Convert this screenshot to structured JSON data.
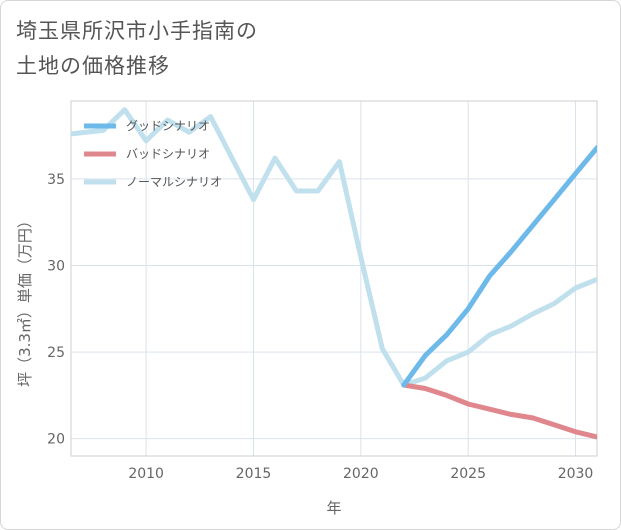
{
  "title_lines": [
    "埼玉県所沢市小手指南の",
    "土地の価格推移"
  ],
  "chart_data": {
    "type": "line",
    "xlabel": "年",
    "ylabel": "坪（3.3㎡）単価（万円）",
    "xlim": [
      2006.5,
      2031
    ],
    "ylim": [
      19,
      39.5
    ],
    "xticks": [
      2010,
      2015,
      2020,
      2025,
      2030
    ],
    "yticks": [
      20,
      25,
      30,
      35
    ],
    "grid": true,
    "legend_position": "top-left",
    "series": [
      {
        "name": "グッドシナリオ",
        "color": "#6cb9ea",
        "x": [
          2022,
          2023,
          2024,
          2025,
          2026,
          2027,
          2028,
          2029,
          2030,
          2031
        ],
        "y": [
          23.1,
          24.8,
          26.0,
          27.5,
          29.4,
          30.8,
          32.3,
          33.8,
          35.3,
          36.8
        ]
      },
      {
        "name": "バッドシナリオ",
        "color": "#e0878e",
        "x": [
          2022,
          2023,
          2024,
          2025,
          2026,
          2027,
          2028,
          2029,
          2030,
          2031
        ],
        "y": [
          23.1,
          22.9,
          22.5,
          22.0,
          21.7,
          21.4,
          21.2,
          20.8,
          20.4,
          20.1
        ]
      },
      {
        "name": "ノーマルシナリオ",
        "color": "#c0e0ee",
        "x": [
          2006.5,
          2008,
          2009,
          2010,
          2011,
          2012,
          2013,
          2014,
          2015,
          2016,
          2017,
          2018,
          2019,
          2020,
          2021,
          2022,
          2023,
          2024,
          2025,
          2026,
          2027,
          2028,
          2029,
          2030,
          2031
        ],
        "y": [
          37.6,
          37.8,
          39.0,
          37.2,
          38.4,
          37.7,
          38.6,
          36.2,
          33.8,
          36.2,
          34.3,
          34.3,
          36.0,
          30.5,
          25.2,
          23.1,
          23.5,
          24.5,
          25.0,
          26.0,
          26.5,
          27.2,
          27.8,
          28.7,
          29.2
        ]
      }
    ]
  }
}
